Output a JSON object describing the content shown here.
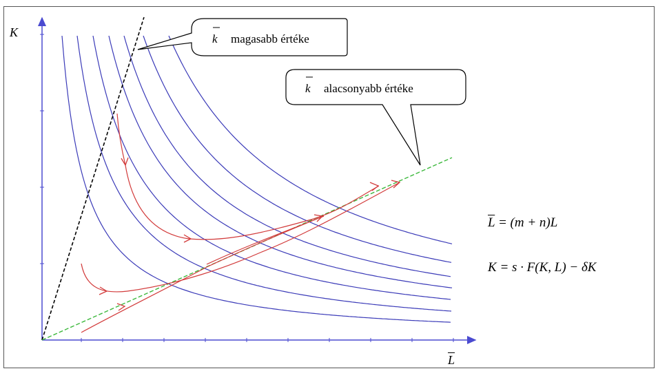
{
  "axes": {
    "y_label": "K",
    "x_label": "L"
  },
  "callouts": {
    "high": {
      "symbol": "k",
      "text": "magasabb értéke"
    },
    "low": {
      "symbol": "k",
      "text": "alacsonyabb értéke"
    }
  },
  "equations": {
    "eq1": {
      "lhs": "L",
      "rhs": "= (m + n)L"
    },
    "eq2": {
      "lhs": "K",
      "rhs": "= s · F(K, L) − δK"
    }
  },
  "colors": {
    "isoquant": "#3a3ab8",
    "trajectory": "#d23a3a",
    "high_ray": "#000000",
    "low_ray": "#3cb83c",
    "axis": "#4a4ad0"
  }
}
